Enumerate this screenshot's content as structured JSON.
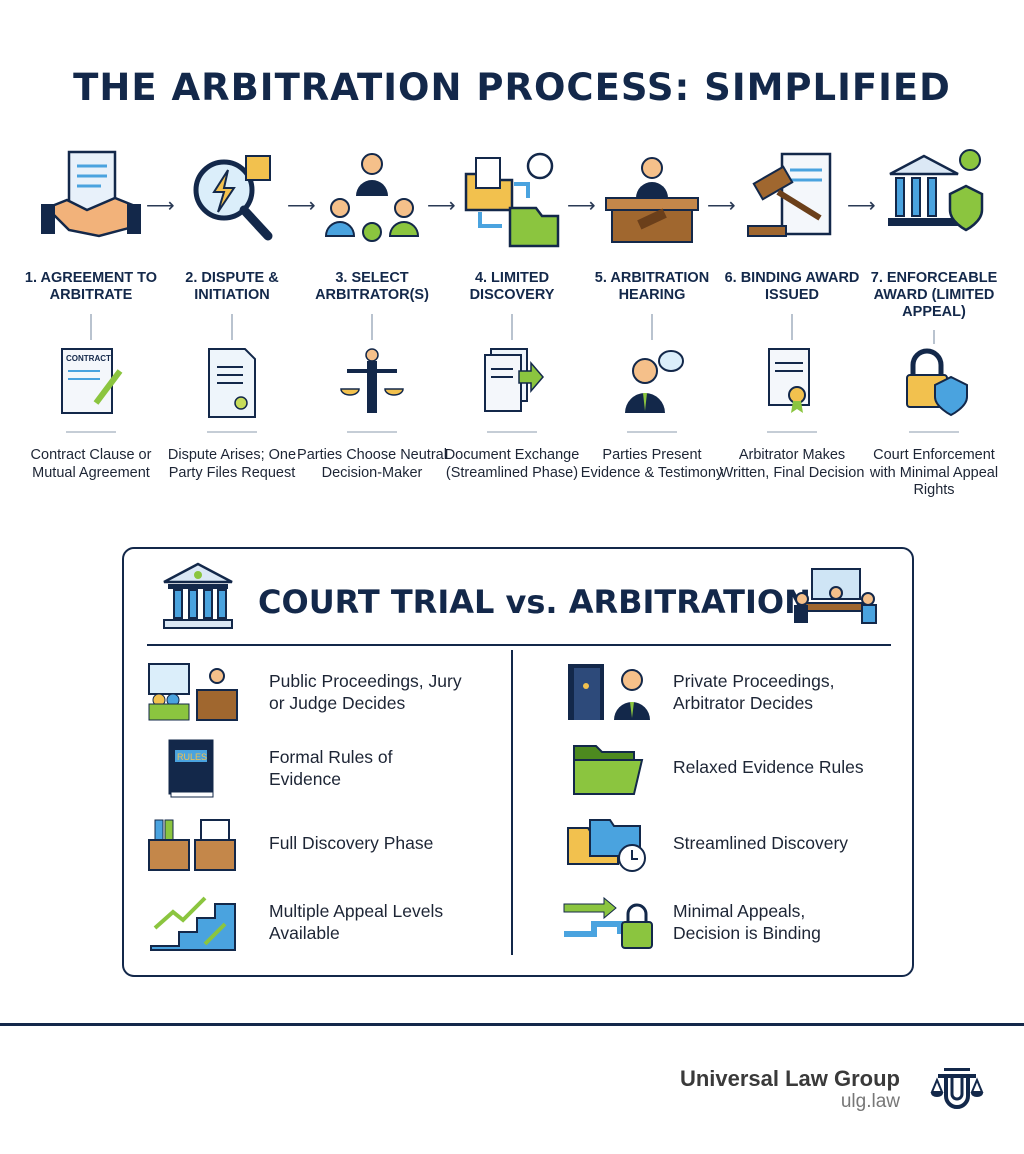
{
  "title": "THE ARBITRATION PROCESS: SIMPLIFIED",
  "steps": [
    {
      "label": "1. AGREEMENT TO ARBITRATE",
      "icon": "handshake-contract-icon",
      "small_icon": "contract-icon",
      "small_text": "CONTRACT",
      "desc": "Contract Clause or Mutual Agreement"
    },
    {
      "label": "2. DISPUTE & INITIATION",
      "icon": "magnifier-lightning-icon",
      "small_icon": "document-icon",
      "desc": "Dispute Arises; One Party Files Request"
    },
    {
      "label": "3. SELECT ARBITRATOR(S)",
      "icon": "people-select-icon",
      "small_icon": "scales-person-icon",
      "desc": "Parties Choose Neutral Decision-Maker"
    },
    {
      "label": "4. LIMITED DISCOVERY",
      "icon": "folders-clock-icon",
      "small_icon": "documents-exchange-icon",
      "desc": "Document Exchange (Streamlined Phase)"
    },
    {
      "label": "5. ARBITRATION HEARING",
      "icon": "hearing-podium-icon",
      "small_icon": "speaker-person-icon",
      "desc": "Parties Present Evidence & Testimony"
    },
    {
      "label": "6. BINDING AWARD ISSUED",
      "icon": "gavel-scroll-icon",
      "small_icon": "certificate-scroll-icon",
      "desc": "Arbitrator Makes Written, Final Decision"
    },
    {
      "label": "7. ENFORCEABLE AWARD (LIMITED APPEAL)",
      "icon": "courthouse-shield-icon",
      "small_icon": "lock-shield-icon",
      "desc": "Court Enforcement with Minimal Appeal Rights"
    }
  ],
  "comparison": {
    "title": "COURT TRIAL vs. ARBITRATION",
    "court": [
      {
        "icon": "courtroom-jury-icon",
        "text": "Public Proceedings, Jury or Judge Decides"
      },
      {
        "icon": "rules-book-icon",
        "text": "Formal Rules of Evidence",
        "book_text": "RULES"
      },
      {
        "icon": "file-boxes-icon",
        "text": "Full Discovery Phase"
      },
      {
        "icon": "stairs-arrows-icon",
        "text": "Multiple Appeal Levels Available"
      }
    ],
    "arbitration": [
      {
        "icon": "private-door-icon",
        "text": "Private Proceedings, Arbitrator Decides"
      },
      {
        "icon": "open-folder-icon",
        "text": "Relaxed Evidence Rules"
      },
      {
        "icon": "folders-clock-icon",
        "text": "Streamlined Discovery"
      },
      {
        "icon": "arrows-lock-icon",
        "text": "Minimal Appeals, Decision is Binding"
      }
    ]
  },
  "footer": {
    "brand": "Universal Law Group",
    "url": "ulg.law"
  },
  "colors": {
    "navy": "#13284a",
    "green": "#8bc53f",
    "blue": "#4aa3df",
    "gold": "#f2c14e"
  }
}
